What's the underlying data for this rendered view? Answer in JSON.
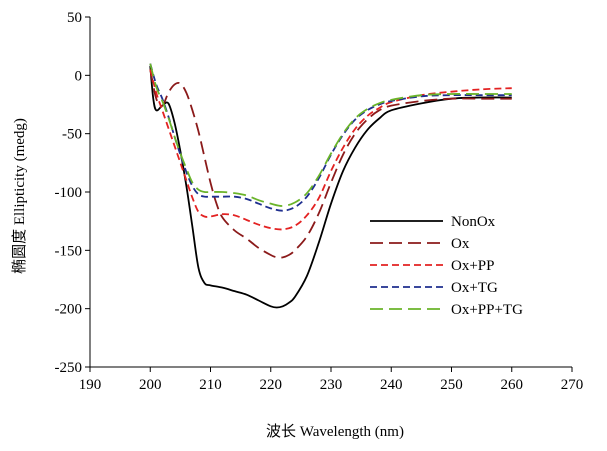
{
  "chart_data": {
    "type": "line",
    "title": "",
    "xlabel": "波长 Wavelength (nm)",
    "ylabel": "椭圆度 Ellipticity (medg)",
    "xlim": [
      190,
      270
    ],
    "ylim": [
      -250,
      50
    ],
    "xticks": [
      190,
      200,
      210,
      220,
      230,
      240,
      250,
      260,
      270
    ],
    "yticks": [
      50,
      0,
      -50,
      -100,
      -150,
      -200,
      -250
    ],
    "grid": false,
    "legend": "center-right",
    "series": [
      {
        "name": "NonOx",
        "color": "#000000",
        "dash": "solid",
        "x": [
          200,
          200.5,
          201,
          202,
          203,
          204,
          205,
          206,
          207,
          208,
          209,
          210,
          212,
          214,
          216,
          218,
          220,
          221,
          222,
          223,
          224,
          226,
          228,
          230,
          232,
          234,
          236,
          238,
          240,
          245,
          250,
          255,
          260
        ],
        "y": [
          8,
          -20,
          -30,
          -26,
          -24,
          -40,
          -65,
          -95,
          -130,
          -165,
          -178,
          -180,
          -182,
          -185,
          -188,
          -193,
          -198,
          -199,
          -198,
          -195,
          -190,
          -172,
          -143,
          -110,
          -82,
          -62,
          -47,
          -37,
          -30,
          -24,
          -20,
          -19,
          -19
        ]
      },
      {
        "name": "Ox",
        "color": "#8b1a1a",
        "dash": "long",
        "x": [
          200,
          201,
          202,
          203,
          204,
          205,
          206,
          207,
          208,
          209,
          210,
          211,
          212,
          214,
          216,
          218,
          220,
          221,
          222,
          223,
          224,
          226,
          228,
          230,
          232,
          234,
          236,
          238,
          240,
          245,
          250,
          255,
          260
        ],
        "y": [
          5,
          -20,
          -26,
          -15,
          -8,
          -7,
          -15,
          -30,
          -48,
          -70,
          -92,
          -110,
          -122,
          -133,
          -140,
          -148,
          -154,
          -156,
          -156,
          -154,
          -150,
          -138,
          -118,
          -92,
          -68,
          -50,
          -38,
          -30,
          -26,
          -22,
          -20,
          -20,
          -20
        ]
      },
      {
        "name": "Ox+PP",
        "color": "#e32222",
        "dash": "short",
        "x": [
          200,
          201,
          202,
          203,
          204,
          205,
          206,
          207,
          208,
          209,
          210,
          212,
          214,
          216,
          218,
          220,
          222,
          224,
          226,
          228,
          230,
          232,
          234,
          236,
          238,
          240,
          245,
          250,
          255,
          260
        ],
        "y": [
          5,
          -15,
          -30,
          -45,
          -60,
          -75,
          -90,
          -105,
          -117,
          -121,
          -121,
          -119,
          -120,
          -124,
          -128,
          -131,
          -132,
          -129,
          -120,
          -105,
          -82,
          -62,
          -46,
          -35,
          -28,
          -23,
          -17,
          -14,
          -12,
          -11
        ]
      },
      {
        "name": "Ox+TG",
        "color": "#1f2f8f",
        "dash": "short",
        "x": [
          200,
          201,
          202,
          203,
          204,
          205,
          206,
          207,
          208,
          209,
          210,
          212,
          214,
          216,
          218,
          220,
          222,
          224,
          226,
          228,
          230,
          232,
          234,
          236,
          238,
          240,
          245,
          250,
          255,
          260
        ],
        "y": [
          10,
          -8,
          -20,
          -35,
          -52,
          -68,
          -83,
          -95,
          -102,
          -104,
          -104,
          -104,
          -104,
          -106,
          -110,
          -114,
          -116,
          -113,
          -104,
          -88,
          -68,
          -51,
          -38,
          -30,
          -25,
          -22,
          -18,
          -17,
          -17,
          -17
        ]
      },
      {
        "name": "Ox+PP+TG",
        "color": "#6ab42a",
        "dash": "long",
        "x": [
          200,
          201,
          202,
          203,
          204,
          205,
          206,
          207,
          208,
          209,
          210,
          212,
          214,
          216,
          218,
          220,
          222,
          224,
          226,
          228,
          230,
          232,
          234,
          236,
          238,
          240,
          245,
          250,
          255,
          260
        ],
        "y": [
          10,
          -10,
          -22,
          -36,
          -52,
          -67,
          -80,
          -92,
          -98,
          -100,
          -100,
          -100,
          -101,
          -103,
          -107,
          -110,
          -112,
          -109,
          -101,
          -86,
          -67,
          -50,
          -37,
          -29,
          -24,
          -21,
          -17,
          -16,
          -16,
          -16
        ]
      }
    ]
  }
}
